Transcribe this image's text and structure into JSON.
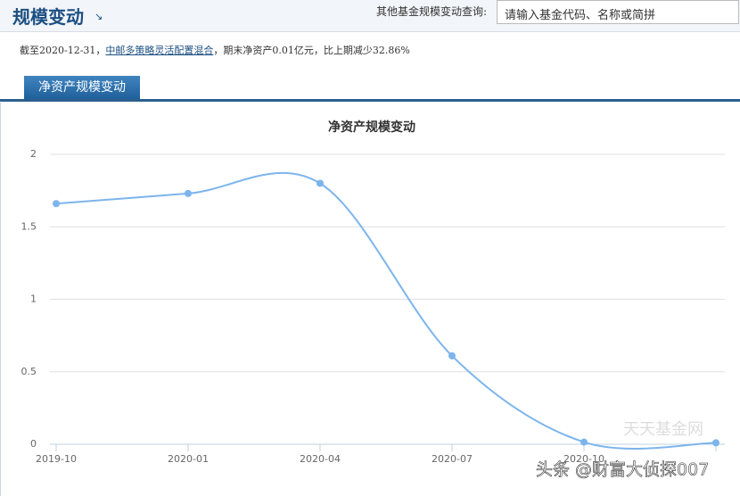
{
  "header": {
    "title": "规模变动",
    "search_label": "其他基金规模变动查询:",
    "search_placeholder": "请输入基金代码、名称或简拼"
  },
  "summary": {
    "prefix": "截至2020-12-31，",
    "fund_link": "中邮多策略灵活配置混合",
    "suffix": "，期末净资产0.01亿元，比上期减少32.86%"
  },
  "tab": "净资产规模变动",
  "chart_data": {
    "type": "line",
    "title": "净资产规模变动",
    "categories": [
      "2019-10",
      "2020-01",
      "2020-04",
      "2020-07",
      "2020-10",
      null
    ],
    "series": [
      {
        "color": "#7cb5ec",
        "values": [
          1.66,
          1.73,
          1.8,
          0.61,
          0.015,
          0.01
        ]
      }
    ],
    "ylim": [
      0,
      2
    ],
    "yticks": [
      0,
      0.5,
      1,
      1.5,
      2
    ],
    "grid": true
  },
  "watermarks": [
    "天天基金网",
    "头条 @财富大侦探007"
  ]
}
